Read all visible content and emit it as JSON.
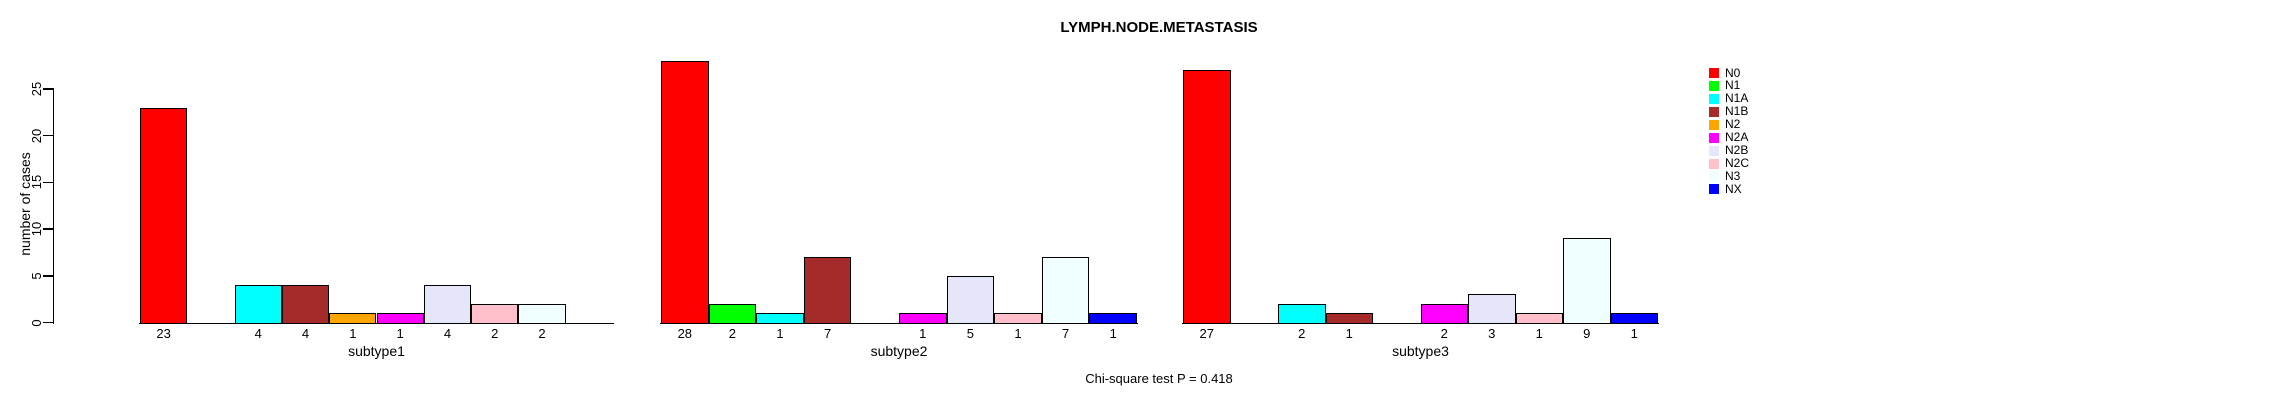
{
  "title": "LYMPH.NODE.METASTASIS",
  "footer": "Chi-square test P = 0.418",
  "chart_data": {
    "type": "bar",
    "title": "LYMPH.NODE.METASTASIS",
    "subtitle": "Chi-square test P = 0.418",
    "xlabel": "",
    "ylabel": "number of cases",
    "ylim": [
      0,
      25
    ],
    "yticks": [
      0,
      5,
      10,
      15,
      20,
      25
    ],
    "grid": "off",
    "categories": [
      "N0",
      "N1",
      "N1A",
      "N1B",
      "N2",
      "N2A",
      "N2B",
      "N2C",
      "N3",
      "NX"
    ],
    "series_colors": [
      "#FF0000",
      "#00FF00",
      "#00FFFF",
      "#A52A2A",
      "#FFA500",
      "#FF00FF",
      "#E6E6FA",
      "#FFC0CB",
      "#F0FFFF",
      "#0000FF"
    ],
    "bar_border_color": "#000000",
    "value_labels_shown_for_nonzero_only": true,
    "groups": [
      {
        "label": "subtype1",
        "values": [
          23,
          0,
          4,
          4,
          1,
          1,
          4,
          2,
          2,
          0
        ]
      },
      {
        "label": "subtype2",
        "values": [
          28,
          2,
          1,
          7,
          0,
          1,
          5,
          1,
          7,
          1
        ]
      },
      {
        "label": "subtype3",
        "values": [
          27,
          0,
          2,
          1,
          0,
          2,
          3,
          1,
          9,
          1
        ]
      }
    ],
    "legend": {
      "position": "right",
      "entries": [
        {
          "label": "N0",
          "color": "#FF0000"
        },
        {
          "label": "N1",
          "color": "#00FF00"
        },
        {
          "label": "N1A",
          "color": "#00FFFF"
        },
        {
          "label": "N1B",
          "color": "#A52A2A"
        },
        {
          "label": "N2",
          "color": "#FFA500"
        },
        {
          "label": "N2A",
          "color": "#FF00FF"
        },
        {
          "label": "N2B",
          "color": "#E6E6FA"
        },
        {
          "label": "N2C",
          "color": "#FFC0CB"
        },
        {
          "label": "N3",
          "color": "#F0FFFF"
        },
        {
          "label": "NX",
          "color": "#0000FF"
        }
      ]
    }
  }
}
